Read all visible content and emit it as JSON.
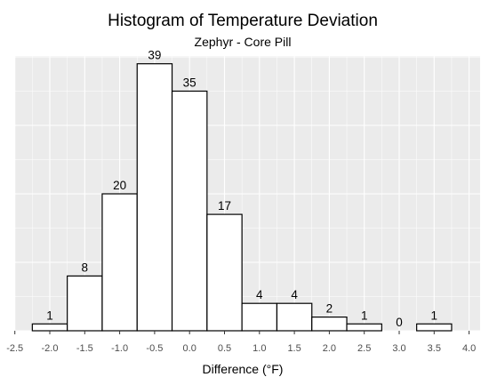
{
  "chart_data": {
    "type": "bar",
    "title": "Histogram of Temperature Deviation",
    "subtitle": "Zephyr - Core Pill",
    "xlabel": "Difference (°F)",
    "ylabel": "",
    "bin_width": 0.5,
    "bins": [
      {
        "center": -2.0,
        "count": 1
      },
      {
        "center": -1.5,
        "count": 8
      },
      {
        "center": -1.0,
        "count": 20
      },
      {
        "center": -0.5,
        "count": 39
      },
      {
        "center": 0.0,
        "count": 35
      },
      {
        "center": 0.5,
        "count": 17
      },
      {
        "center": 1.0,
        "count": 4
      },
      {
        "center": 1.5,
        "count": 4
      },
      {
        "center": 2.0,
        "count": 2
      },
      {
        "center": 2.5,
        "count": 1
      },
      {
        "center": 3.0,
        "count": 0
      },
      {
        "center": 3.5,
        "count": 1
      }
    ],
    "xticks": [
      "-2.5",
      "-2.0",
      "-1.5",
      "-1.0",
      "-0.5",
      "0.0",
      "0.5",
      "1.0",
      "1.5",
      "2.0",
      "2.5",
      "3.0",
      "3.5",
      "4.0"
    ],
    "xlim": [
      -2.5,
      4.0
    ],
    "ylim": [
      0,
      41
    ],
    "grid": true,
    "colors": {
      "panel_background": "#ebebeb",
      "grid": "#ffffff",
      "bar_fill": "#ffffff",
      "bar_stroke": "#000000"
    }
  }
}
